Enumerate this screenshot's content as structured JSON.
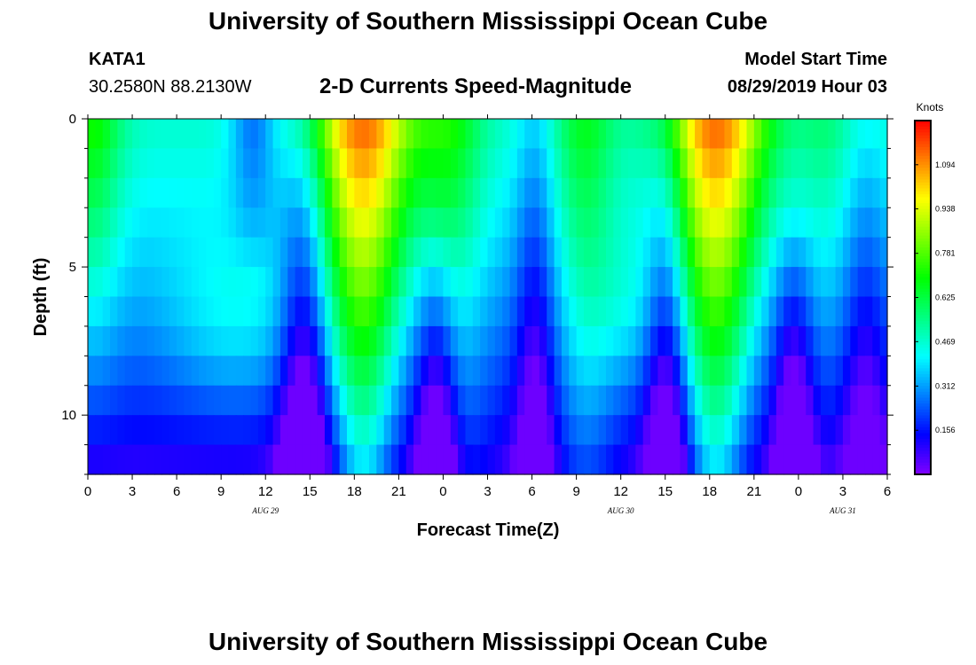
{
  "header": {
    "title": "University of Southern Mississippi Ocean Cube",
    "station": "KATA1",
    "coords": "30.2580N 88.2130W",
    "chart_title": "2-D Currents Speed-Magnitude",
    "model_label": "Model Start Time",
    "model_time": "08/29/2019 Hour 03"
  },
  "footer": {
    "title": "University of Southern Mississippi Ocean Cube"
  },
  "chart_data": {
    "type": "heatmap",
    "title": "2-D Currents Speed-Magnitude",
    "xlabel": "Forecast Time(Z)",
    "ylabel": "Depth (ft)",
    "ylim": [
      0,
      12
    ],
    "y_ticks": [
      0,
      5,
      10
    ],
    "x_tick_labels": [
      "0",
      "3",
      "6",
      "9",
      "12",
      "15",
      "18",
      "21",
      "0",
      "3",
      "6",
      "9",
      "12",
      "15",
      "18",
      "21",
      "0",
      "3",
      "6"
    ],
    "date_labels": [
      {
        "label": "AUG 29",
        "hour": 12
      },
      {
        "label": "AUG 30",
        "hour": 36
      },
      {
        "label": "AUG 31",
        "hour": 51
      }
    ],
    "x_range_hours": [
      0,
      54
    ],
    "colorbar": {
      "unit": "Knots",
      "range": [
        0.0,
        1.25
      ],
      "tick_values": [
        "0.156",
        "0.312",
        "0.469",
        "0.625",
        "0.781",
        "0.938",
        "1.094"
      ]
    },
    "speed_description": "Current speed (knots) vs. forecast hour and depth; surface maxima ~1.1 kn near hours 18-20 and 42-44, minima ~0.05 kn at depth near hours 15, 23, 30, 39, 47 and 52"
  }
}
